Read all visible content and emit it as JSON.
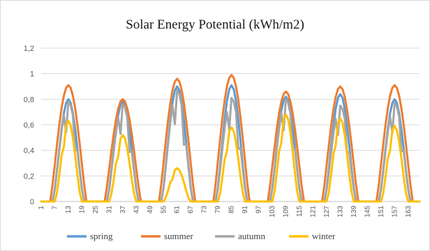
{
  "chart_data": {
    "type": "line",
    "title": "Solar Energy Potential (kWh/m2)",
    "xlabel": "",
    "ylabel": "",
    "ylim": [
      0,
      1.2
    ],
    "y_ticks": [
      "0",
      "0,2",
      "0,4",
      "0,6",
      "0,8",
      "1",
      "1,2"
    ],
    "x_ticks": [
      1,
      7,
      13,
      19,
      25,
      31,
      37,
      43,
      49,
      55,
      61,
      67,
      73,
      79,
      85,
      91,
      97,
      103,
      109,
      115,
      121,
      127,
      133,
      139,
      145,
      151,
      157,
      163
    ],
    "x_range": [
      1,
      168
    ],
    "grid": "horizontal",
    "legend_position": "bottom",
    "day_length": 24,
    "day_peaks": {
      "spring": [
        0.8,
        0.78,
        0.9,
        0.91,
        0.82,
        0.84,
        0.8
      ],
      "summer": [
        0.91,
        0.8,
        0.96,
        0.99,
        0.86,
        0.9,
        0.91
      ],
      "autumn": [
        0.78,
        0.76,
        0.87,
        0.81,
        0.8,
        0.75,
        0.77
      ],
      "winter": [
        0.63,
        0.52,
        0.26,
        0.58,
        0.68,
        0.65,
        0.59
      ]
    },
    "series": [
      {
        "name": "spring",
        "color": "#5b9bd5"
      },
      {
        "name": "summer",
        "color": "#ed7d31"
      },
      {
        "name": "autumn",
        "color": "#a5a5a5"
      },
      {
        "name": "winter",
        "color": "#ffc000"
      }
    ]
  }
}
